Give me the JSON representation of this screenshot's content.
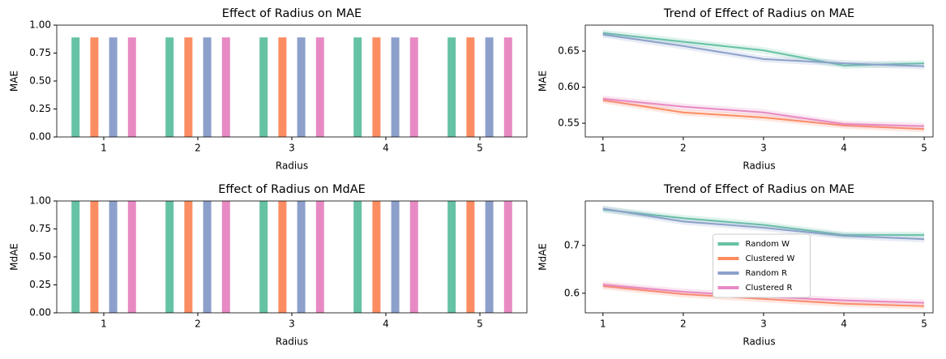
{
  "chart_data": [
    {
      "type": "strip",
      "title": "Effect of Radius on MAE",
      "xlabel": "Radius",
      "ylabel": "MAE",
      "x": [
        1,
        2,
        3,
        4,
        5
      ],
      "xlim": [
        0.5,
        5.5
      ],
      "xticks": [
        1,
        2,
        3,
        4,
        5
      ],
      "ylim": [
        0,
        1
      ],
      "yticks": [
        {
          "value": 0,
          "label": "0.00"
        },
        {
          "value": 0.25,
          "label": "0.25"
        },
        {
          "value": 0.5,
          "label": "0.50"
        },
        {
          "value": 0.75,
          "label": "0.75"
        },
        {
          "value": 1,
          "label": "1.00"
        }
      ],
      "series": [
        {
          "color": "#66c2a5",
          "low": [
            0,
            0,
            0,
            0,
            0
          ],
          "high": [
            0.89,
            0.89,
            0.89,
            0.89,
            0.89
          ]
        },
        {
          "color": "#fc8d62",
          "low": [
            0,
            0,
            0,
            0,
            0
          ],
          "high": [
            0.89,
            0.89,
            0.89,
            0.89,
            0.89
          ]
        },
        {
          "color": "#8da0cb",
          "low": [
            0,
            0,
            0,
            0,
            0
          ],
          "high": [
            0.89,
            0.89,
            0.89,
            0.89,
            0.89
          ]
        },
        {
          "color": "#e78ac3",
          "low": [
            0,
            0,
            0,
            0,
            0
          ],
          "high": [
            0.89,
            0.89,
            0.89,
            0.89,
            0.89
          ]
        }
      ]
    },
    {
      "type": "line",
      "title": "Trend of Effect of Radius on MAE",
      "xlabel": "Radius",
      "ylabel": "MAE",
      "x": [
        1,
        2,
        3,
        4,
        5
      ],
      "xlim": [
        0.78,
        5.11
      ],
      "xticks": [
        1,
        2,
        3,
        4,
        5
      ],
      "ylim": [
        0.531,
        0.686
      ],
      "yticks": [
        0.55,
        {
          "value": 0.6,
          "label": "0.60"
        },
        0.65
      ],
      "series": [
        {
          "color": "#66c2a5",
          "values": [
            0.675,
            0.663,
            0.651,
            0.63,
            0.633
          ]
        },
        {
          "color": "#fc8d62",
          "values": [
            0.582,
            0.565,
            0.558,
            0.547,
            0.542
          ]
        },
        {
          "color": "#8da0cb",
          "values": [
            0.673,
            0.657,
            0.639,
            0.633,
            0.629
          ]
        },
        {
          "color": "#e78ac3",
          "values": [
            0.584,
            0.573,
            0.565,
            0.549,
            0.546
          ]
        }
      ]
    },
    {
      "type": "strip",
      "title": "Effect of Radius on MdAE",
      "xlabel": "Radius",
      "ylabel": "MdAE",
      "x": [
        1,
        2,
        3,
        4,
        5
      ],
      "xlim": [
        0.5,
        5.5
      ],
      "xticks": [
        1,
        2,
        3,
        4,
        5
      ],
      "ylim": [
        0,
        1
      ],
      "yticks": [
        {
          "value": 0,
          "label": "0.00"
        },
        {
          "value": 0.25,
          "label": "0.25"
        },
        {
          "value": 0.5,
          "label": "0.50"
        },
        {
          "value": 0.75,
          "label": "0.75"
        },
        {
          "value": 1,
          "label": "1.00"
        }
      ],
      "series": [
        {
          "color": "#66c2a5",
          "low": [
            0,
            0,
            0,
            0,
            0
          ],
          "high": [
            1,
            1,
            1,
            1,
            1
          ]
        },
        {
          "color": "#fc8d62",
          "low": [
            0,
            0,
            0,
            0,
            0
          ],
          "high": [
            1,
            1,
            1,
            1,
            1
          ]
        },
        {
          "color": "#8da0cb",
          "low": [
            0,
            0,
            0,
            0,
            0
          ],
          "high": [
            1,
            1,
            1,
            1,
            1
          ]
        },
        {
          "color": "#e78ac3",
          "low": [
            0,
            0,
            0,
            0,
            0
          ],
          "high": [
            1,
            1,
            1,
            1,
            1
          ]
        }
      ]
    },
    {
      "type": "line",
      "title": "Trend of Effect of Radius on MAE",
      "xlabel": "Radius",
      "ylabel": "MdAE",
      "x": [
        1,
        2,
        3,
        4,
        5
      ],
      "xlim": [
        0.78,
        5.11
      ],
      "xticks": [
        1,
        2,
        3,
        4,
        5
      ],
      "ylim": [
        0.559,
        0.793
      ],
      "yticks": [
        0.6,
        0.7
      ],
      "legend": "center",
      "series": [
        {
          "name": "Random W",
          "color": "#66c2a5",
          "values": [
            0.775,
            0.757,
            0.743,
            0.722,
            0.722
          ]
        },
        {
          "name": "Clustered W",
          "color": "#fc8d62",
          "values": [
            0.615,
            0.598,
            0.588,
            0.578,
            0.573
          ]
        },
        {
          "name": "Random R",
          "color": "#8da0cb",
          "values": [
            0.777,
            0.75,
            0.737,
            0.72,
            0.713
          ]
        },
        {
          "name": "Clustered R",
          "color": "#e78ac3",
          "values": [
            0.618,
            0.603,
            0.593,
            0.585,
            0.58
          ]
        }
      ]
    }
  ]
}
